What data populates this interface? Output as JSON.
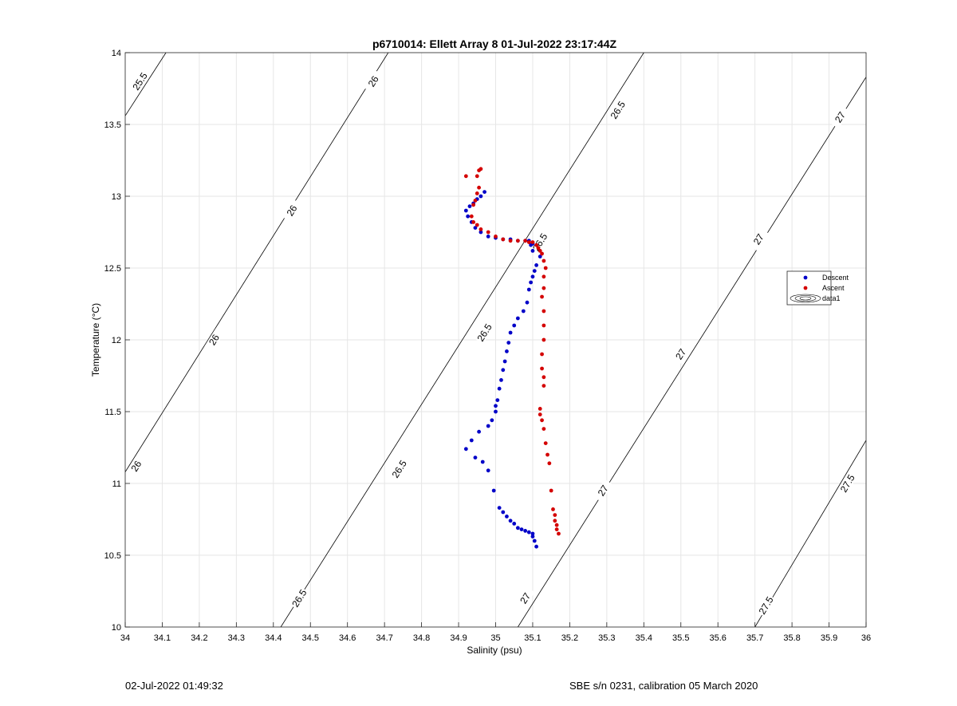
{
  "figure": {
    "footer_left": "02-Jul-2022 01:49:32",
    "footer_right": "SBE s/n 0231, calibration 05 March 2020"
  },
  "chart_data": {
    "type": "scatter",
    "title": "p6710014: Ellett Array 8 01-Jul-2022 23:17:44Z",
    "xlabel": "Salinity (psu)",
    "ylabel": "Temperature (°C)",
    "xlim": [
      34,
      36
    ],
    "ylim": [
      10,
      14
    ],
    "xticks": [
      34,
      34.1,
      34.2,
      34.3,
      34.4,
      34.5,
      34.6,
      34.7,
      34.8,
      34.9,
      35,
      35.1,
      35.2,
      35.3,
      35.4,
      35.5,
      35.6,
      35.7,
      35.8,
      35.9,
      36
    ],
    "xtick_labels": [
      "34",
      "34.1",
      "34.2",
      "34.3",
      "34.4",
      "34.5",
      "34.6",
      "34.7",
      "34.8",
      "34.9",
      "35",
      "35.1",
      "35.2",
      "35.3",
      "35.4",
      "35.5",
      "35.6",
      "35.7",
      "35.8",
      "35.9",
      "36"
    ],
    "yticks": [
      10,
      10.5,
      11,
      11.5,
      12,
      12.5,
      13,
      13.5,
      14
    ],
    "ytick_labels": [
      "10",
      "10.5",
      "11",
      "11.5",
      "12",
      "12.5",
      "13",
      "13.5",
      "14"
    ],
    "grid": true,
    "legend": {
      "position": "right",
      "entries": [
        {
          "label": "Descent",
          "color": "#0000c8",
          "marker": "dot"
        },
        {
          "label": "Ascent",
          "color": "#d40000",
          "marker": "dot"
        },
        {
          "label": "data1",
          "color": "#000000",
          "marker": "contour"
        }
      ]
    },
    "contours": [
      {
        "level": 25.5,
        "label": "25.5",
        "points": [
          [
            34.0,
            13.56
          ],
          [
            34.11,
            14.0
          ]
        ],
        "labels_at": [
          [
            34.04,
            13.8
          ]
        ]
      },
      {
        "level": 26,
        "label": "26",
        "points": [
          [
            34.0,
            11.08
          ],
          [
            34.71,
            14.0
          ]
        ],
        "labels_at": [
          [
            34.03,
            11.12
          ],
          [
            34.24,
            12.0
          ],
          [
            34.45,
            12.9
          ],
          [
            34.67,
            13.8
          ]
        ]
      },
      {
        "level": 26.5,
        "label": "26.5",
        "points": [
          [
            34.42,
            10.0
          ],
          [
            35.4,
            14.0
          ]
        ],
        "labels_at": [
          [
            34.47,
            10.2
          ],
          [
            34.74,
            11.1
          ],
          [
            34.97,
            12.05
          ],
          [
            35.12,
            12.68
          ],
          [
            35.33,
            13.6
          ]
        ]
      },
      {
        "level": 27,
        "label": "27",
        "points": [
          [
            35.06,
            10.0
          ],
          [
            36.0,
            13.83
          ]
        ],
        "labels_at": [
          [
            35.08,
            10.2
          ],
          [
            35.29,
            10.95
          ],
          [
            35.5,
            11.9
          ],
          [
            35.71,
            12.7
          ],
          [
            35.93,
            13.55
          ]
        ]
      },
      {
        "level": 27.5,
        "label": "27.5",
        "points": [
          [
            35.7,
            10.0
          ],
          [
            36.0,
            11.3
          ]
        ],
        "labels_at": [
          [
            35.73,
            10.15
          ],
          [
            35.95,
            11.0
          ]
        ]
      }
    ],
    "series": [
      {
        "name": "Descent",
        "color": "#0000c8",
        "x": [
          35.11,
          35.105,
          35.1,
          35.1,
          35.09,
          35.08,
          35.07,
          35.06,
          35.05,
          35.04,
          35.03,
          35.02,
          35.01,
          34.995,
          34.98,
          34.965,
          34.945,
          34.92,
          34.935,
          34.955,
          34.98,
          34.99,
          35.0,
          35.0,
          35.005,
          35.01,
          35.015,
          35.02,
          35.025,
          35.03,
          35.035,
          35.04,
          35.05,
          35.06,
          35.075,
          35.085,
          35.09,
          35.095,
          35.1,
          35.105,
          35.11,
          35.12,
          35.1,
          35.095,
          35.09,
          35.1,
          35.08,
          35.06,
          35.04,
          35.02,
          35.0,
          34.98,
          34.96,
          34.945,
          34.935,
          34.925,
          34.92,
          34.93,
          34.94,
          34.95,
          34.96,
          34.97
        ],
        "y": [
          10.56,
          10.6,
          10.63,
          10.65,
          10.66,
          10.67,
          10.68,
          10.69,
          10.72,
          10.74,
          10.77,
          10.8,
          10.83,
          10.95,
          11.09,
          11.15,
          11.18,
          11.24,
          11.3,
          11.36,
          11.4,
          11.44,
          11.5,
          11.54,
          11.58,
          11.66,
          11.72,
          11.79,
          11.85,
          11.92,
          11.98,
          12.05,
          12.1,
          12.15,
          12.2,
          12.26,
          12.35,
          12.4,
          12.44,
          12.48,
          12.52,
          12.58,
          12.62,
          12.66,
          12.69,
          12.67,
          12.69,
          12.69,
          12.7,
          12.7,
          12.71,
          12.72,
          12.75,
          12.78,
          12.82,
          12.86,
          12.9,
          12.93,
          12.95,
          12.98,
          13.0,
          13.03
        ]
      },
      {
        "name": "Ascent",
        "color": "#d40000",
        "x": [
          35.17,
          35.165,
          35.165,
          35.16,
          35.16,
          35.155,
          35.15,
          35.145,
          35.14,
          35.135,
          35.13,
          35.125,
          35.12,
          35.12,
          35.13,
          35.13,
          35.125,
          35.125,
          35.13,
          35.13,
          35.13,
          35.125,
          35.13,
          35.13,
          35.135,
          35.13,
          35.125,
          35.12,
          35.115,
          35.11,
          35.1,
          35.09,
          35.08,
          35.06,
          35.04,
          35.02,
          35.0,
          34.98,
          34.96,
          34.95,
          34.94,
          34.935,
          34.94,
          34.945,
          34.95,
          34.955,
          34.95,
          34.955,
          34.96,
          34.92
        ],
        "y": [
          10.65,
          10.68,
          10.71,
          10.74,
          10.78,
          10.82,
          10.95,
          11.14,
          11.2,
          11.28,
          11.38,
          11.44,
          11.48,
          11.52,
          11.68,
          11.74,
          11.8,
          11.9,
          12.0,
          12.1,
          12.2,
          12.3,
          12.36,
          12.44,
          12.5,
          12.55,
          12.6,
          12.62,
          12.64,
          12.66,
          12.68,
          12.68,
          12.69,
          12.69,
          12.69,
          12.7,
          12.72,
          12.75,
          12.77,
          12.8,
          12.82,
          12.86,
          12.94,
          12.97,
          13.02,
          13.06,
          13.14,
          13.18,
          13.19,
          13.14
        ]
      }
    ]
  }
}
